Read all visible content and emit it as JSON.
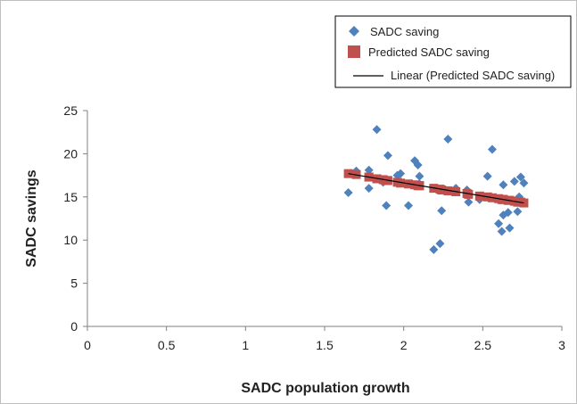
{
  "chart_data": {
    "type": "scatter",
    "title": "",
    "xlabel": "SADC population growth",
    "ylabel": "SADC savings",
    "xlim": [
      0,
      3
    ],
    "ylim": [
      0,
      25
    ],
    "x_ticks": [
      "0",
      "0.5",
      "1",
      "1.5",
      "2",
      "2.5",
      "3"
    ],
    "y_ticks": [
      "0",
      "5",
      "10",
      "15",
      "20",
      "25"
    ],
    "grid": false,
    "legend_position": "top-right",
    "series": [
      {
        "name": "SADC saving",
        "marker": "diamond",
        "color": "#4F81BD",
        "points": [
          [
            1.65,
            15.5
          ],
          [
            1.7,
            18.0
          ],
          [
            1.78,
            18.1
          ],
          [
            1.78,
            16.0
          ],
          [
            1.83,
            22.8
          ],
          [
            1.87,
            16.7
          ],
          [
            1.89,
            14.0
          ],
          [
            1.9,
            19.8
          ],
          [
            1.96,
            17.5
          ],
          [
            1.98,
            17.7
          ],
          [
            2.03,
            14.0
          ],
          [
            2.07,
            19.2
          ],
          [
            2.09,
            18.7
          ],
          [
            2.1,
            17.4
          ],
          [
            2.1,
            16.5
          ],
          [
            2.19,
            8.9
          ],
          [
            2.23,
            9.6
          ],
          [
            2.24,
            13.4
          ],
          [
            2.28,
            21.7
          ],
          [
            2.33,
            16.0
          ],
          [
            2.4,
            15.8
          ],
          [
            2.41,
            14.4
          ],
          [
            2.48,
            14.7
          ],
          [
            2.53,
            17.4
          ],
          [
            2.56,
            20.5
          ],
          [
            2.6,
            11.9
          ],
          [
            2.62,
            11.0
          ],
          [
            2.63,
            12.9
          ],
          [
            2.63,
            16.4
          ],
          [
            2.66,
            13.2
          ],
          [
            2.67,
            11.4
          ],
          [
            2.7,
            16.8
          ],
          [
            2.72,
            13.3
          ],
          [
            2.73,
            15.0
          ],
          [
            2.74,
            17.3
          ],
          [
            2.76,
            16.6
          ]
        ]
      },
      {
        "name": "Predicted SADC saving",
        "marker": "square",
        "color": "#C0504D",
        "points": [
          [
            1.65,
            17.7
          ],
          [
            1.7,
            17.6
          ],
          [
            1.78,
            17.3
          ],
          [
            1.78,
            17.3
          ],
          [
            1.83,
            17.1
          ],
          [
            1.87,
            17.0
          ],
          [
            1.89,
            16.9
          ],
          [
            1.9,
            16.9
          ],
          [
            1.96,
            16.7
          ],
          [
            1.98,
            16.6
          ],
          [
            2.03,
            16.5
          ],
          [
            2.07,
            16.4
          ],
          [
            2.09,
            16.3
          ],
          [
            2.1,
            16.3
          ],
          [
            2.1,
            16.3
          ],
          [
            2.19,
            16.0
          ],
          [
            2.23,
            15.9
          ],
          [
            2.24,
            15.8
          ],
          [
            2.28,
            15.7
          ],
          [
            2.33,
            15.6
          ],
          [
            2.4,
            15.4
          ],
          [
            2.41,
            15.3
          ],
          [
            2.48,
            15.1
          ],
          [
            2.53,
            15.0
          ],
          [
            2.56,
            14.9
          ],
          [
            2.6,
            14.8
          ],
          [
            2.62,
            14.7
          ],
          [
            2.63,
            14.7
          ],
          [
            2.63,
            14.7
          ],
          [
            2.66,
            14.6
          ],
          [
            2.67,
            14.6
          ],
          [
            2.7,
            14.5
          ],
          [
            2.72,
            14.4
          ],
          [
            2.73,
            14.4
          ],
          [
            2.74,
            14.4
          ],
          [
            2.76,
            14.3
          ]
        ]
      }
    ],
    "trendline": {
      "name": "Linear (Predicted SADC saving)",
      "type": "linear",
      "color": "#000000",
      "from": [
        1.65,
        17.7
      ],
      "to": [
        2.76,
        14.3
      ]
    }
  }
}
